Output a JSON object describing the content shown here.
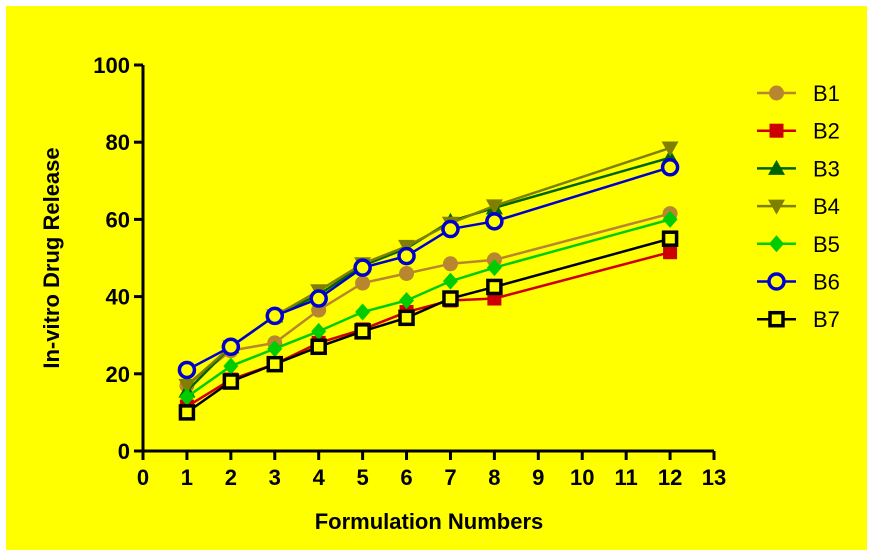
{
  "chart_data": {
    "type": "line",
    "title": "",
    "xlabel": "Formulation Numbers",
    "ylabel": "In-vitro Drug Release",
    "xlim": [
      0,
      13
    ],
    "ylim": [
      0,
      100
    ],
    "xticks": [
      0,
      1,
      2,
      3,
      4,
      5,
      6,
      7,
      8,
      9,
      10,
      11,
      12,
      13
    ],
    "yticks": [
      0,
      20,
      40,
      60,
      80,
      100
    ],
    "grid": false,
    "legend_position": "right",
    "x": [
      1,
      2,
      3,
      4,
      5,
      6,
      7,
      8,
      12
    ],
    "series": [
      {
        "name": "B1",
        "color": "#B8862E",
        "marker": "circle-filled",
        "values": [
          17,
          26,
          28,
          36.5,
          43.5,
          46,
          48.5,
          49.5,
          61.5
        ]
      },
      {
        "name": "B2",
        "color": "#CC0000",
        "marker": "square-filled",
        "values": [
          11.5,
          18.5,
          22.5,
          28,
          31.5,
          36,
          39,
          39.5,
          51.5
        ]
      },
      {
        "name": "B3",
        "color": "#006400",
        "marker": "triangle-up",
        "values": [
          15.5,
          27,
          35,
          40.5,
          48,
          52.5,
          59.5,
          63,
          76
        ]
      },
      {
        "name": "B4",
        "color": "#808000",
        "marker": "triangle-down",
        "values": [
          17,
          27,
          35,
          41.5,
          48.5,
          53,
          59,
          63.5,
          78.5
        ]
      },
      {
        "name": "B5",
        "color": "#00CC00",
        "marker": "diamond",
        "values": [
          14,
          22,
          26.5,
          31,
          36,
          39,
          44,
          47.5,
          60
        ]
      },
      {
        "name": "B6",
        "color": "#0000CC",
        "marker": "circle-open",
        "values": [
          21,
          27,
          35,
          39.5,
          47.5,
          50.5,
          57.5,
          59.5,
          73.5
        ]
      },
      {
        "name": "B7",
        "color": "#000000",
        "marker": "square-open",
        "values": [
          10,
          18,
          22.5,
          27,
          31,
          34.5,
          39.5,
          42.5,
          55
        ]
      }
    ]
  }
}
